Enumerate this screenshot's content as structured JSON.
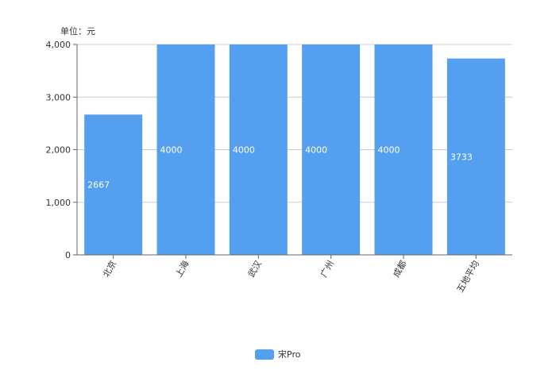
{
  "chart_data": {
    "type": "bar",
    "unit_label": "单位：元",
    "categories": [
      "北京",
      "上海",
      "武汉",
      "广州",
      "成都",
      "五地平均"
    ],
    "series": [
      {
        "name": "宋Pro",
        "values": [
          2667,
          4000,
          4000,
          4000,
          4000,
          3733
        ],
        "color": "#559ff0"
      }
    ],
    "data_labels": [
      "2667",
      "4000",
      "4000",
      "4000",
      "4000",
      "3733"
    ],
    "y_ticks": [
      0,
      1000,
      2000,
      3000,
      4000
    ],
    "y_tick_labels": [
      "0",
      "1,000",
      "2,000",
      "3,000",
      "4,000"
    ],
    "ylim": [
      0,
      4000
    ],
    "grid": true,
    "legend_position": "bottom-center"
  }
}
